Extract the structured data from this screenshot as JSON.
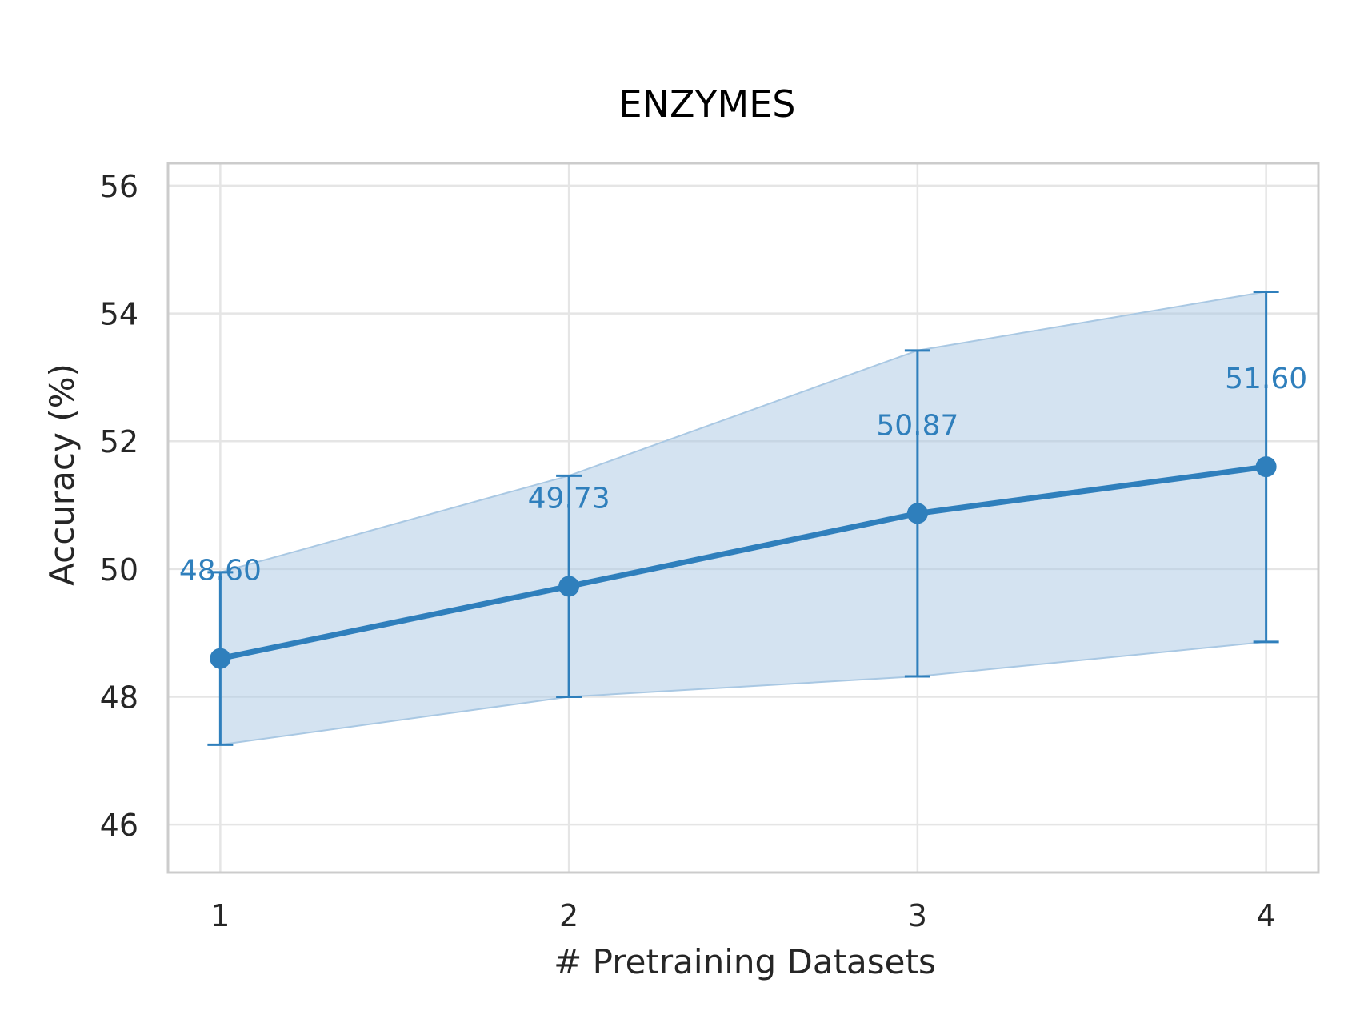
{
  "chart_data": {
    "type": "line",
    "title": "ENZYMES",
    "xlabel": "# Pretraining Datasets",
    "ylabel": "Accuracy (%)",
    "x": [
      1,
      2,
      3,
      4
    ],
    "xticks": [
      "1",
      "2",
      "3",
      "4"
    ],
    "yticks": [
      "46",
      "48",
      "50",
      "52",
      "54",
      "56"
    ],
    "xlim": [
      0.85,
      4.15
    ],
    "ylim": [
      45.25,
      56.35
    ],
    "grid": true,
    "series": [
      {
        "values": [
          48.6,
          49.73,
          50.87,
          51.6
        ],
        "lower": [
          47.25,
          48.0,
          48.32,
          48.86
        ],
        "upper": [
          49.95,
          51.46,
          53.42,
          54.34
        ],
        "labels": [
          "48.60",
          "49.73",
          "50.87",
          "51.60"
        ],
        "color": "#2f7fbc",
        "band_color": "#a9c8e3"
      }
    ]
  }
}
